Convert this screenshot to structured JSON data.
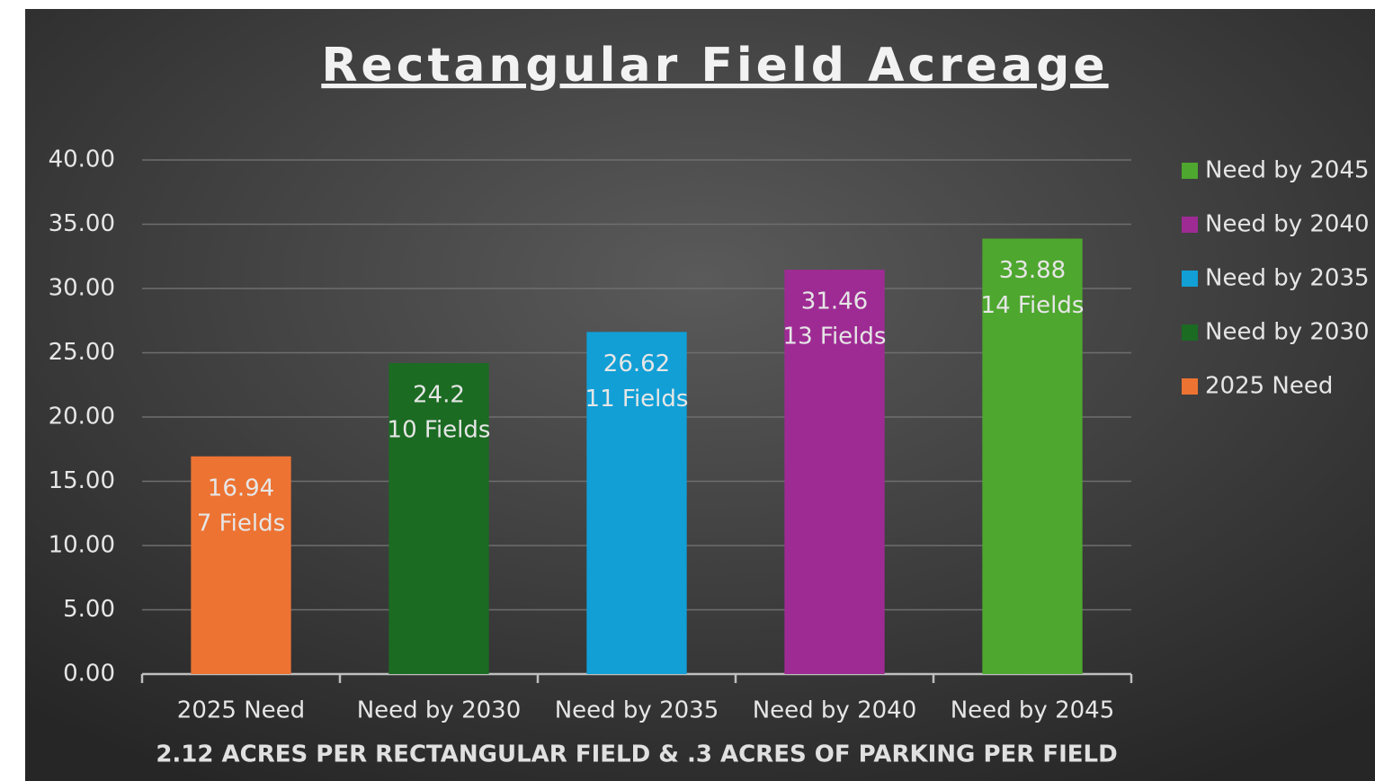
{
  "chart_data": {
    "type": "bar",
    "title": "Rectangular Field Acreage",
    "x_axis_label": "2.12 ACRES PER RECTANGULAR FIELD & .3 ACRES OF PARKING PER FIELD",
    "categories": [
      "2025 Need",
      "Need by 2030",
      "Need by 2035",
      "Need by 2040",
      "Need by 2045"
    ],
    "values": [
      16.94,
      24.2,
      26.62,
      31.46,
      33.88
    ],
    "field_labels": [
      "7 Fields",
      "10 Fields",
      "11 Fields",
      "13 Fields",
      "14 Fields"
    ],
    "colors": [
      "#ed7332",
      "#1b6b22",
      "#119fd6",
      "#9e2b94",
      "#4ea72e"
    ],
    "ylim": [
      0,
      40
    ],
    "yticks": [
      {
        "value": 0,
        "label": "0.00"
      },
      {
        "value": 5,
        "label": "5.00"
      },
      {
        "value": 10,
        "label": "10.00"
      },
      {
        "value": 15,
        "label": "15.00"
      },
      {
        "value": 20,
        "label": "20.00"
      },
      {
        "value": 25,
        "label": "25.00"
      },
      {
        "value": 30,
        "label": "30.00"
      },
      {
        "value": 35,
        "label": "35.00"
      },
      {
        "value": 40,
        "label": "40.00"
      }
    ],
    "grid": true,
    "legend": "right",
    "legend_reversed": true
  }
}
